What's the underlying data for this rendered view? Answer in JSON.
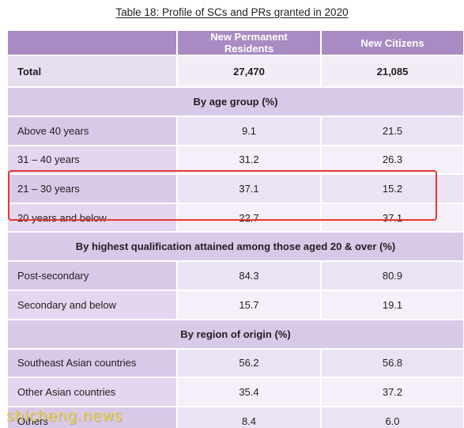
{
  "caption": "Table 18: Profile of SCs and PRs granted in 2020",
  "columns": [
    "",
    "New Permanent Residents",
    "New Citizens"
  ],
  "total": {
    "label": "Total",
    "prs": "27,470",
    "citizens": "21,085"
  },
  "sections": [
    {
      "title": "By age group (%)",
      "rows": [
        {
          "label": "Above 40 years",
          "prs": "9.1",
          "citizens": "21.5"
        },
        {
          "label": "31 – 40 years",
          "prs": "31.2",
          "citizens": "26.3"
        },
        {
          "label": "21 – 30 years",
          "prs": "37.1",
          "citizens": "15.2"
        },
        {
          "label": "20 years and below",
          "prs": "22.7",
          "citizens": "37.1"
        }
      ]
    },
    {
      "title": "By highest qualification attained among those aged 20 & over (%)",
      "rows": [
        {
          "label": "Post-secondary",
          "prs": "84.3",
          "citizens": "80.9"
        },
        {
          "label": "Secondary and below",
          "prs": "15.7",
          "citizens": "19.1"
        }
      ]
    },
    {
      "title": "By region of origin (%)",
      "rows": [
        {
          "label": "Southeast Asian countries",
          "prs": "56.2",
          "citizens": "56.8"
        },
        {
          "label": "Other Asian countries",
          "prs": "35.4",
          "citizens": "37.2"
        },
        {
          "label": "Others",
          "prs": "8.4",
          "citizens": "6.0"
        }
      ]
    }
  ],
  "watermark": "shicheng.news",
  "colors": {
    "header": "#a88bc2",
    "highlight": "#e53935",
    "watermark": "#e6d24a"
  }
}
